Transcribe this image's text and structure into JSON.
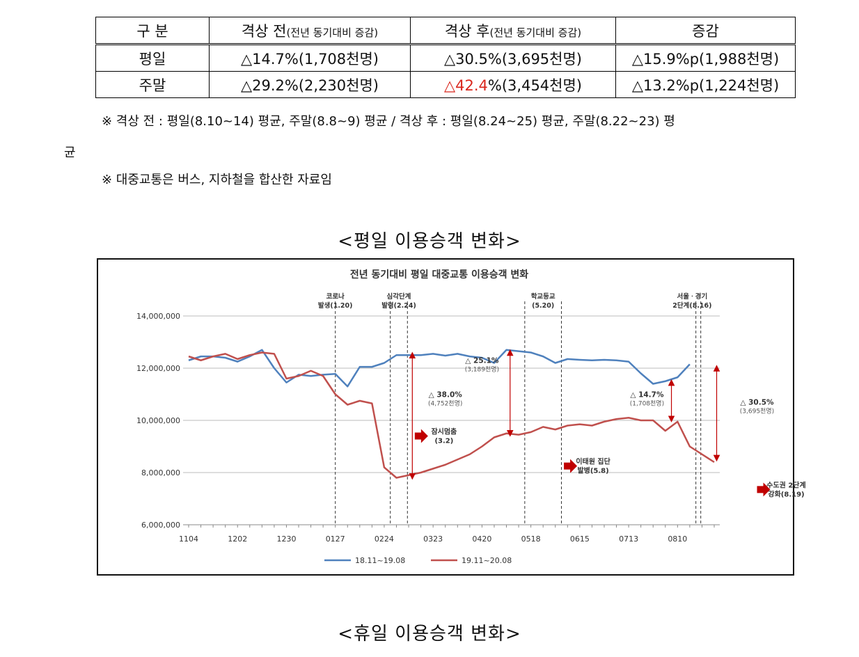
{
  "table": {
    "headers": {
      "category": "구 분",
      "before_main": "격상 전",
      "before_sub": "(전년 동기대비 증감)",
      "after_main": "격상 후",
      "after_sub": "(전년 동기대비 증감)",
      "change": "증감"
    },
    "rows": [
      {
        "label": "평일",
        "before": "△14.7%(1,708천명)",
        "after_prefix": "△",
        "after_value": "30.5",
        "after_suffix": "%(3,695천명)",
        "change": "△15.9%p(1,988천명)"
      },
      {
        "label": "주말",
        "before": "△29.2%(2,230천명)",
        "after_prefix": "△",
        "after_value": "42.4",
        "after_suffix": "%(3,454천명)",
        "change": "△13.2%p(1,224천명)"
      }
    ]
  },
  "notes": {
    "note1": "※ 격상 전 : 평일(8.10~14) 평균, 주말(8.8~9) 평균 / 격상 후 : 평일(8.24~25) 평균, 주말(8.22~23) 평",
    "note1_wrap": "균",
    "note2": "※ 대중교통은 버스, 지하철을 합산한 자료임"
  },
  "captions": {
    "weekday": "<평일 이용승객 변화>",
    "holiday": "<휴일 이용승객 변화>"
  },
  "colors": {
    "series_prev": "#4f81bd",
    "series_curr": "#c0504d",
    "arrow": "#c00000"
  },
  "chart_data": {
    "type": "line",
    "title": "전년 동기대비 평일 대중교통 이용승객 변화",
    "x_tick_labels": [
      "1104",
      "1202",
      "1230",
      "0127",
      "0224",
      "0323",
      "0420",
      "0518",
      "0615",
      "0713",
      "0810"
    ],
    "ylim": [
      6000000,
      14000000
    ],
    "y_ticks": [
      6000000,
      8000000,
      10000000,
      12000000,
      14000000
    ],
    "y_tick_labels": [
      "6,000,000",
      "8,000,000",
      "10,000,000",
      "12,000,000",
      "14,000,000"
    ],
    "legend_position": "bottom",
    "series": [
      {
        "name": "18.11~19.08",
        "color": "#4f81bd",
        "x": [
          0,
          1,
          2,
          3,
          4,
          5,
          6,
          7,
          8,
          9,
          10,
          11,
          12,
          13,
          14,
          15,
          16,
          17,
          18,
          19,
          20,
          21,
          22,
          23,
          24,
          25,
          26,
          27,
          28,
          29,
          30,
          31,
          32,
          33,
          34,
          35,
          36,
          37,
          38,
          39,
          40,
          41
        ],
        "values": [
          12300000,
          12450000,
          12450000,
          12400000,
          12250000,
          12450000,
          12700000,
          12000000,
          11450000,
          11750000,
          11700000,
          11750000,
          11780000,
          11300000,
          12050000,
          12050000,
          12200000,
          12500000,
          12500000,
          12500000,
          12550000,
          12480000,
          12550000,
          12450000,
          12400000,
          12200000,
          12700000,
          12650000,
          12600000,
          12450000,
          12200000,
          12350000,
          12320000,
          12300000,
          12320000,
          12300000,
          12250000,
          11800000,
          11400000,
          11500000,
          11650000,
          12150000
        ]
      },
      {
        "name": "19.11~20.08",
        "color": "#c0504d",
        "x": [
          0,
          1,
          2,
          3,
          4,
          5,
          6,
          7,
          8,
          9,
          10,
          11,
          12,
          13,
          14,
          15,
          16,
          17,
          18,
          19,
          20,
          21,
          22,
          23,
          24,
          25,
          26,
          27,
          28,
          29,
          30,
          31,
          32,
          33,
          34,
          35,
          36,
          37,
          38,
          39,
          40,
          41,
          42,
          43
        ],
        "values": [
          12450000,
          12300000,
          12450000,
          12550000,
          12350000,
          12500000,
          12600000,
          12550000,
          11600000,
          11700000,
          11900000,
          11700000,
          11000000,
          10600000,
          10750000,
          10650000,
          8200000,
          7800000,
          7900000,
          8000000,
          8150000,
          8300000,
          8500000,
          8700000,
          9000000,
          9350000,
          9500000,
          9450000,
          9550000,
          9750000,
          9650000,
          9800000,
          9850000,
          9800000,
          9950000,
          10050000,
          10100000,
          10000000,
          10000000,
          9600000,
          9950000,
          9000000,
          8700000,
          8400000
        ]
      }
    ],
    "event_labels": [
      {
        "line1": "코로나",
        "line2": "발생(1.20)"
      },
      {
        "line1": "심각단계",
        "line2": "발령(2.24)"
      },
      {
        "line1": "학교등교",
        "line2": "(5.20)"
      },
      {
        "line1": "서울ㆍ경기",
        "line2": "2단계(8.16)"
      }
    ],
    "annotations": [
      {
        "pct": "△ 38.0%",
        "count": "(4,752천명)"
      },
      {
        "pct": "△ 25.1%",
        "count": "(3,189천명)"
      },
      {
        "pct": "△ 14.7%",
        "count": "(1,708천명)"
      },
      {
        "pct": "△ 30.5%",
        "count": "(3,695천명)"
      }
    ],
    "arrow_notes": [
      {
        "line1": "잠시멈춤",
        "line2": "(3.2)"
      },
      {
        "line1": "이태원 집단",
        "line2": "발병(5.8)"
      },
      {
        "line1": "수도권 2단계",
        "line2": "강화(8.19)"
      }
    ]
  }
}
